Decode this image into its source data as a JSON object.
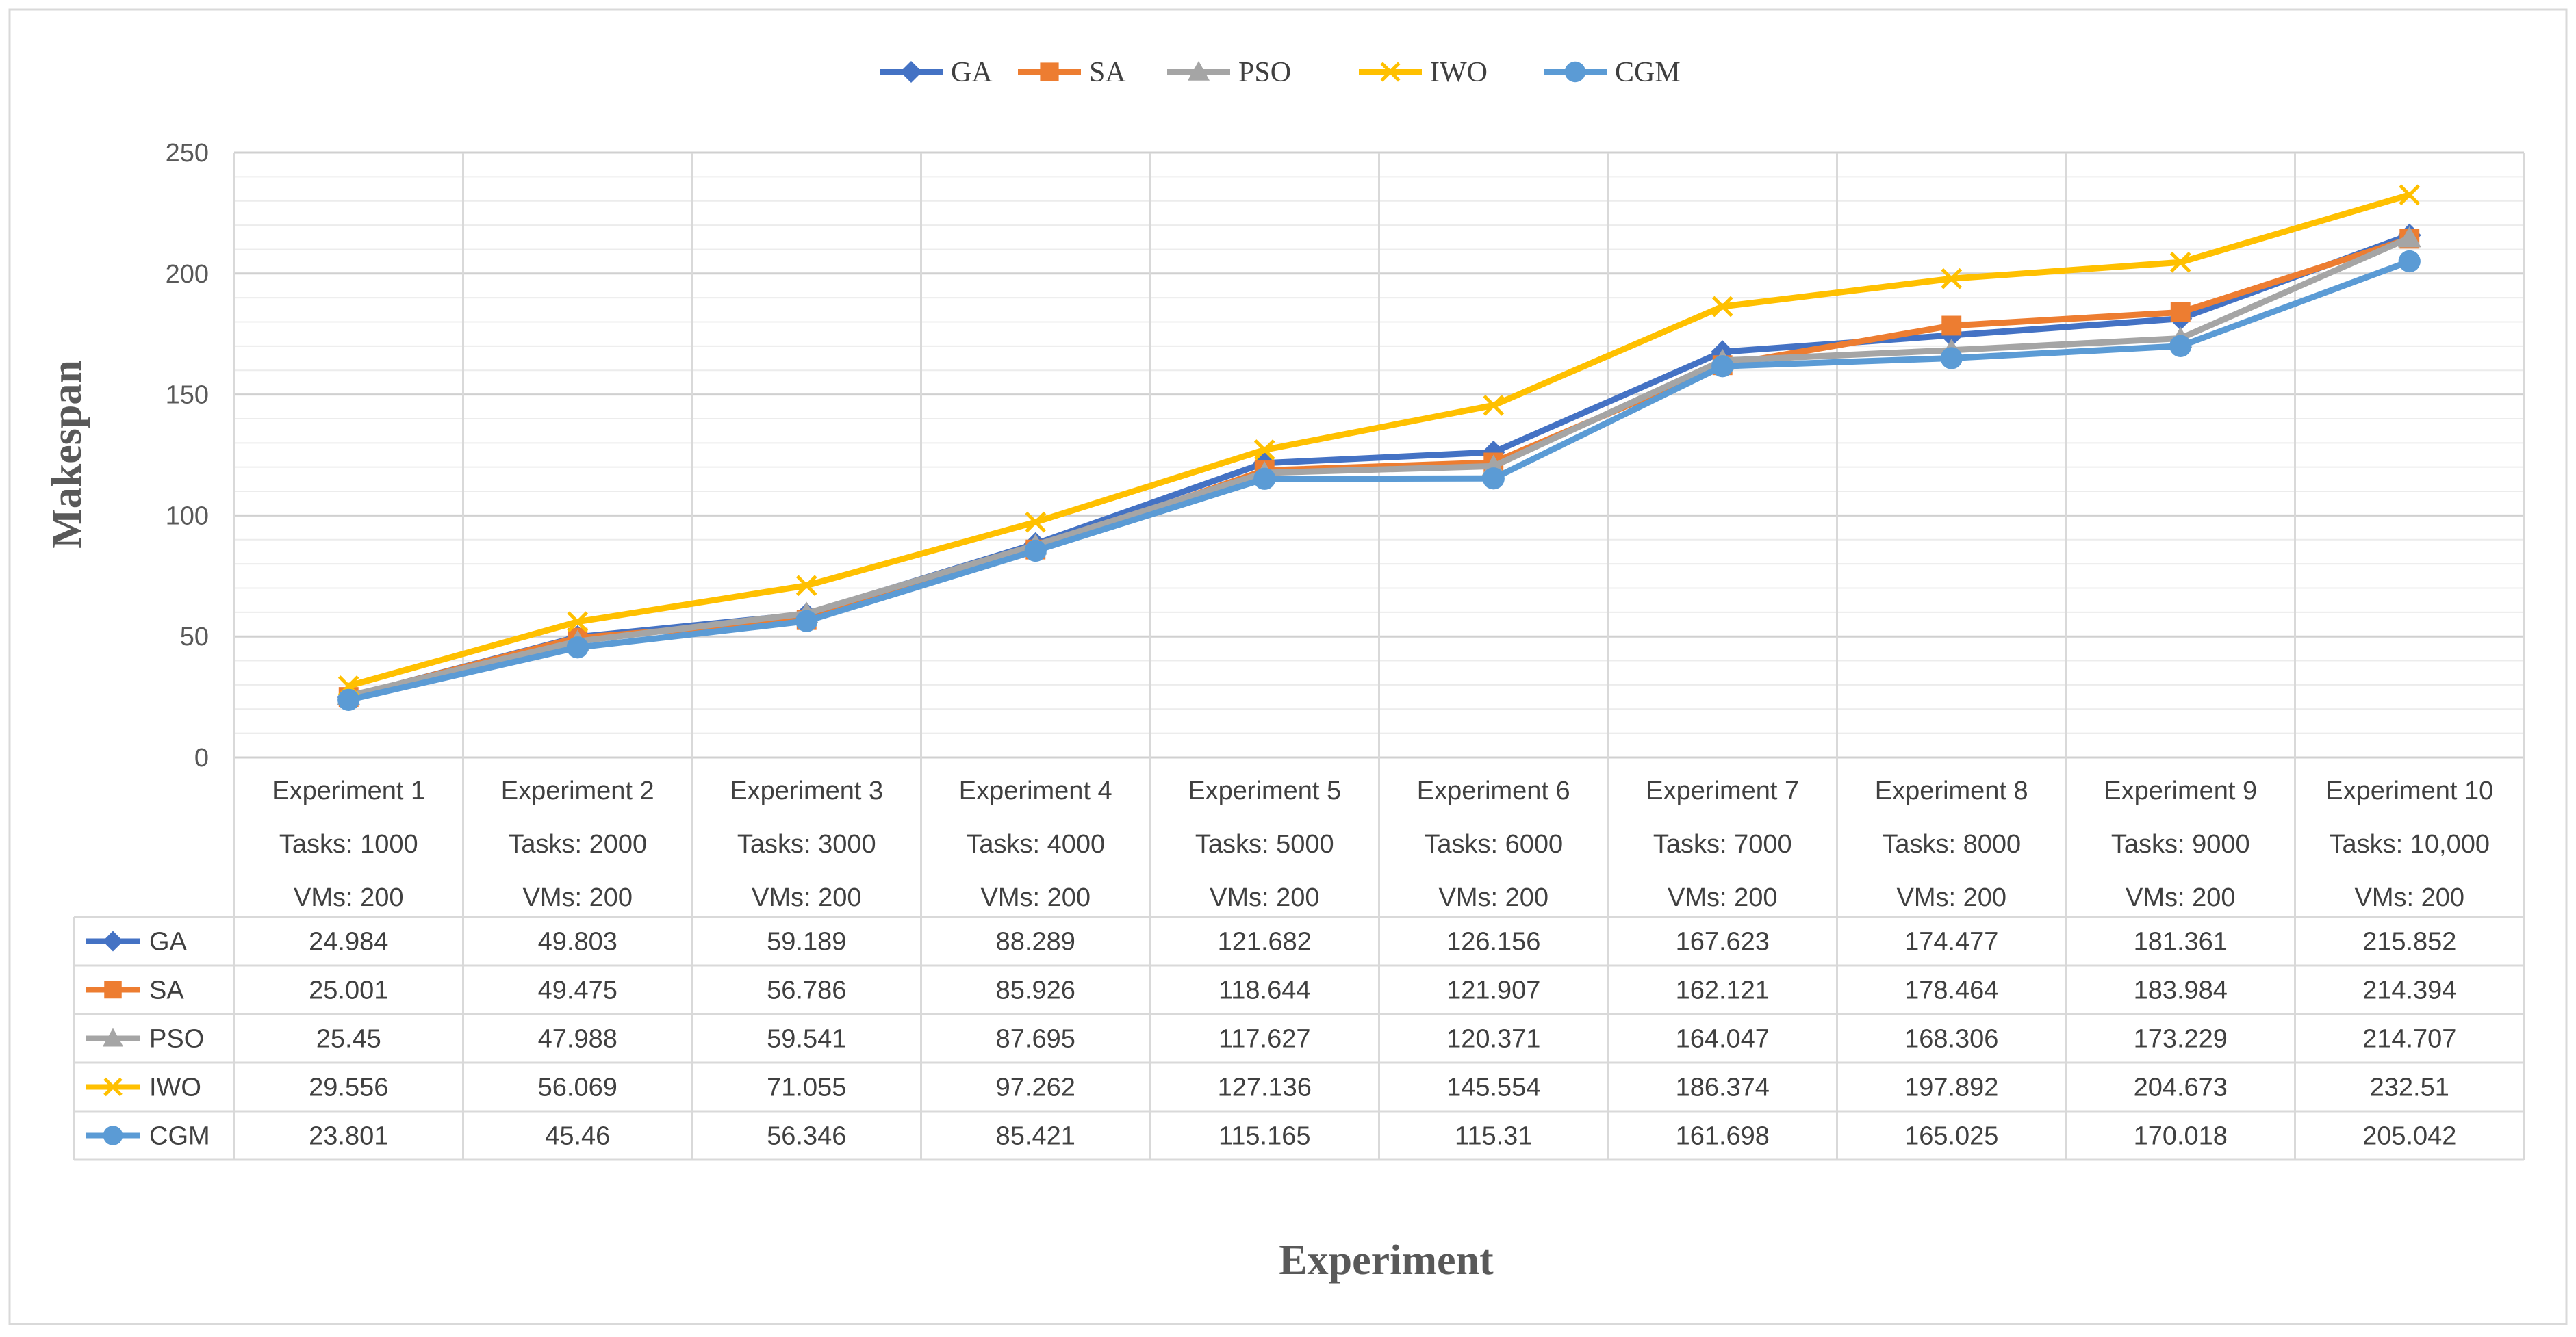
{
  "chart_data": {
    "type": "line",
    "title": "",
    "ylabel": "Makespan",
    "xlabel": "Experiment",
    "ylim": [
      0,
      250
    ],
    "y_ticks": [
      0,
      50,
      100,
      150,
      200,
      250
    ],
    "grid": true,
    "legend_position": "top",
    "categories": [
      [
        "Experiment 1",
        "Tasks: 1000",
        "VMs: 200"
      ],
      [
        "Experiment 2",
        "Tasks: 2000",
        "VMs: 200"
      ],
      [
        "Experiment 3",
        "Tasks: 3000",
        "VMs: 200"
      ],
      [
        "Experiment 4",
        "Tasks: 4000",
        "VMs: 200"
      ],
      [
        "Experiment 5",
        "Tasks: 5000",
        "VMs: 200"
      ],
      [
        "Experiment 6",
        "Tasks: 6000",
        "VMs: 200"
      ],
      [
        "Experiment 7",
        "Tasks: 7000",
        "VMs: 200"
      ],
      [
        "Experiment 8",
        "Tasks: 8000",
        "VMs: 200"
      ],
      [
        "Experiment 9",
        "Tasks: 9000",
        "VMs: 200"
      ],
      [
        "Experiment 10",
        "Tasks: 10,000",
        "VMs: 200"
      ]
    ],
    "series": [
      {
        "name": "GA",
        "color": "#4472C4",
        "marker": "diamond",
        "values": [
          24.984,
          49.803,
          59.189,
          88.289,
          121.682,
          126.156,
          167.623,
          174.477,
          181.361,
          215.852
        ],
        "labels": [
          "24.984",
          "49.803",
          "59.189",
          "88.289",
          "121.682",
          "126.156",
          "167.623",
          "174.477",
          "181.361",
          "215.852"
        ]
      },
      {
        "name": "SA",
        "color": "#ED7D31",
        "marker": "square",
        "values": [
          25.001,
          49.475,
          56.786,
          85.926,
          118.644,
          121.907,
          162.121,
          178.464,
          183.984,
          214.394
        ],
        "labels": [
          "25.001",
          "49.475",
          "56.786",
          "85.926",
          "118.644",
          "121.907",
          "162.121",
          "178.464",
          "183.984",
          "214.394"
        ]
      },
      {
        "name": "PSO",
        "color": "#A5A5A5",
        "marker": "triangle",
        "values": [
          25.45,
          47.988,
          59.541,
          87.695,
          117.627,
          120.371,
          164.047,
          168.306,
          173.229,
          214.707
        ],
        "labels": [
          "25.45",
          "47.988",
          "59.541",
          "87.695",
          "117.627",
          "120.371",
          "164.047",
          "168.306",
          "173.229",
          "214.707"
        ]
      },
      {
        "name": "IWO",
        "color": "#FFC000",
        "marker": "x",
        "values": [
          29.556,
          56.069,
          71.055,
          97.262,
          127.136,
          145.554,
          186.374,
          197.892,
          204.673,
          232.51
        ],
        "labels": [
          "29.556",
          "56.069",
          "71.055",
          "97.262",
          "127.136",
          "145.554",
          "186.374",
          "197.892",
          "204.673",
          "232.51"
        ]
      },
      {
        "name": "CGM",
        "color": "#5B9BD5",
        "marker": "circle",
        "values": [
          23.801,
          45.46,
          56.346,
          85.421,
          115.165,
          115.31,
          161.698,
          165.025,
          170.018,
          205.042
        ],
        "labels": [
          "23.801",
          "45.46",
          "56.346",
          "85.421",
          "115.165",
          "115.31",
          "161.698",
          "165.025",
          "170.018",
          "205.042"
        ]
      }
    ]
  }
}
